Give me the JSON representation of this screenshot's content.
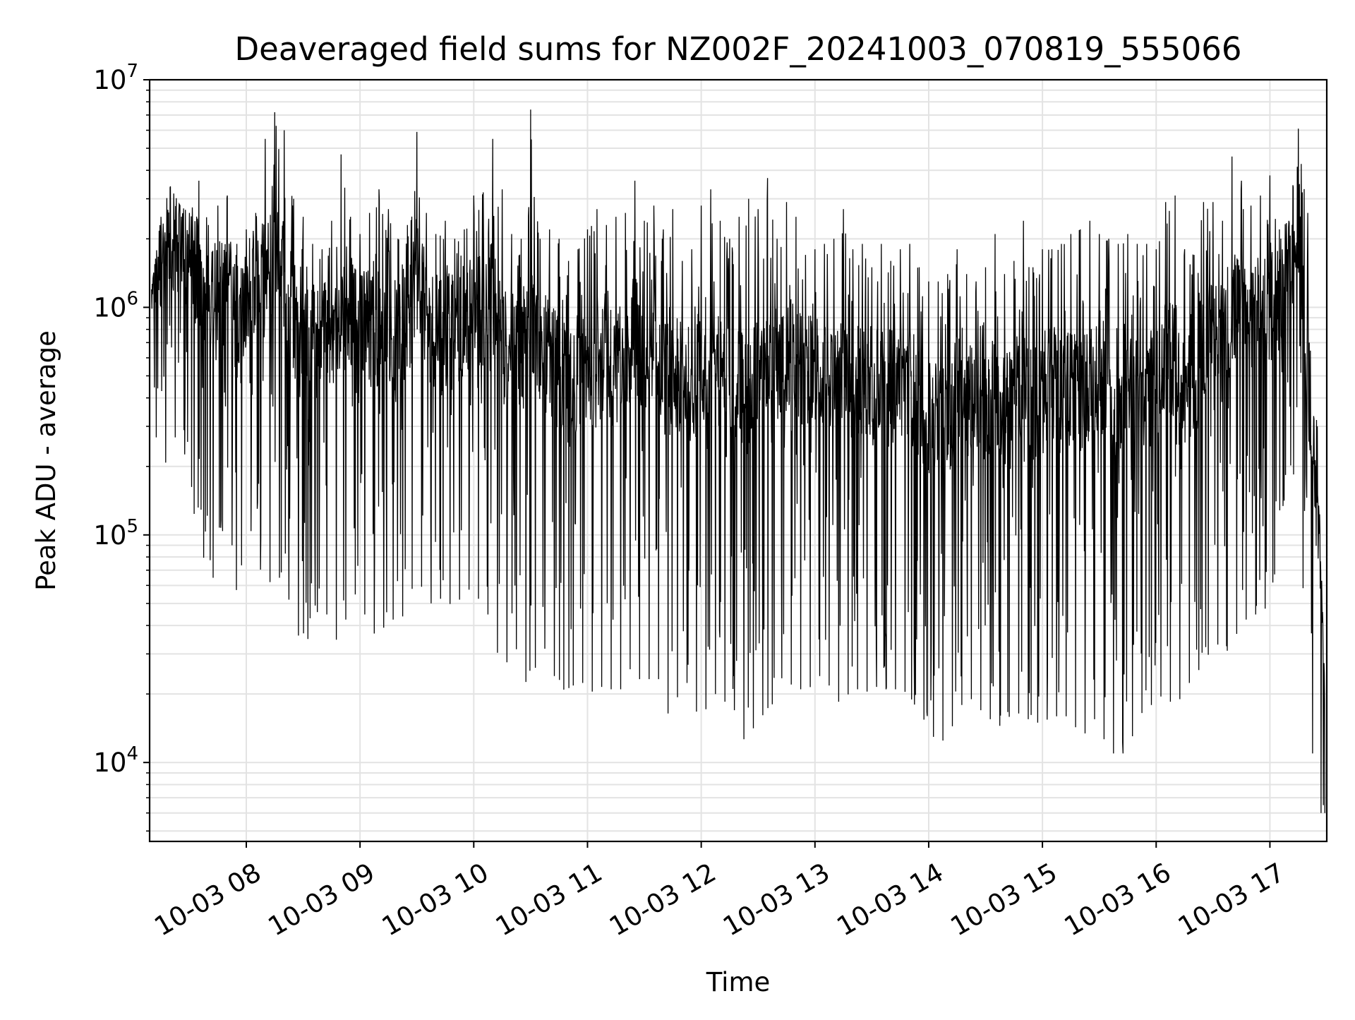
{
  "chart_data": {
    "type": "line",
    "title": "Deaveraged field sums for NZ002F_20241003_070819_555066",
    "xlabel": "Time",
    "ylabel": "Peak ADU - average",
    "y_scale": "log",
    "ylim": [
      4500,
      10000000
    ],
    "xlim": [
      "2024-10-03 07:09",
      "2024-10-03 17:30"
    ],
    "grid": true,
    "legend": "none",
    "line_color": "#000000",
    "x_ticks": [
      {
        "value": "2024-10-03 08:00",
        "label": "10-03 08"
      },
      {
        "value": "2024-10-03 09:00",
        "label": "10-03 09"
      },
      {
        "value": "2024-10-03 10:00",
        "label": "10-03 10"
      },
      {
        "value": "2024-10-03 11:00",
        "label": "10-03 11"
      },
      {
        "value": "2024-10-03 12:00",
        "label": "10-03 12"
      },
      {
        "value": "2024-10-03 13:00",
        "label": "10-03 13"
      },
      {
        "value": "2024-10-03 14:00",
        "label": "10-03 14"
      },
      {
        "value": "2024-10-03 15:00",
        "label": "10-03 15"
      },
      {
        "value": "2024-10-03 16:00",
        "label": "10-03 16"
      },
      {
        "value": "2024-10-03 17:00",
        "label": "10-03 17"
      }
    ],
    "y_ticks": [
      {
        "value": 10000,
        "base": "10",
        "exp": "4"
      },
      {
        "value": 100000,
        "base": "10",
        "exp": "5"
      },
      {
        "value": 1000000,
        "base": "10",
        "exp": "6"
      },
      {
        "value": 10000000,
        "base": "10",
        "exp": "7"
      }
    ],
    "series": [
      {
        "x": [
          "2024-10-03 07:10",
          "2024-10-03 07:15",
          "2024-10-03 07:20",
          "2024-10-03 07:25",
          "2024-10-03 07:30",
          "2024-10-03 07:35",
          "2024-10-03 07:40",
          "2024-10-03 07:45",
          "2024-10-03 07:50",
          "2024-10-03 07:55",
          "2024-10-03 08:00",
          "2024-10-03 08:05",
          "2024-10-03 08:10",
          "2024-10-03 08:15",
          "2024-10-03 08:20",
          "2024-10-03 08:25",
          "2024-10-03 08:30",
          "2024-10-03 08:35",
          "2024-10-03 08:40",
          "2024-10-03 08:45",
          "2024-10-03 08:50",
          "2024-10-03 08:55",
          "2024-10-03 09:00",
          "2024-10-03 09:05",
          "2024-10-03 09:10",
          "2024-10-03 09:15",
          "2024-10-03 09:20",
          "2024-10-03 09:25",
          "2024-10-03 09:30",
          "2024-10-03 09:35",
          "2024-10-03 09:40",
          "2024-10-03 09:45",
          "2024-10-03 09:50",
          "2024-10-03 09:55",
          "2024-10-03 10:00",
          "2024-10-03 10:05",
          "2024-10-03 10:10",
          "2024-10-03 10:15",
          "2024-10-03 10:20",
          "2024-10-03 10:25",
          "2024-10-03 10:30",
          "2024-10-03 10:35",
          "2024-10-03 10:40",
          "2024-10-03 10:45",
          "2024-10-03 10:50",
          "2024-10-03 10:55",
          "2024-10-03 11:00",
          "2024-10-03 11:05",
          "2024-10-03 11:10",
          "2024-10-03 11:15",
          "2024-10-03 11:20",
          "2024-10-03 11:25",
          "2024-10-03 11:30",
          "2024-10-03 11:35",
          "2024-10-03 11:40",
          "2024-10-03 11:45",
          "2024-10-03 11:50",
          "2024-10-03 11:55",
          "2024-10-03 12:00",
          "2024-10-03 12:05",
          "2024-10-03 12:10",
          "2024-10-03 12:15",
          "2024-10-03 12:20",
          "2024-10-03 12:25",
          "2024-10-03 12:30",
          "2024-10-03 12:35",
          "2024-10-03 12:40",
          "2024-10-03 12:45",
          "2024-10-03 12:50",
          "2024-10-03 12:55",
          "2024-10-03 13:00",
          "2024-10-03 13:05",
          "2024-10-03 13:10",
          "2024-10-03 13:15",
          "2024-10-03 13:20",
          "2024-10-03 13:25",
          "2024-10-03 13:30",
          "2024-10-03 13:35",
          "2024-10-03 13:40",
          "2024-10-03 13:45",
          "2024-10-03 13:50",
          "2024-10-03 13:55",
          "2024-10-03 14:00",
          "2024-10-03 14:05",
          "2024-10-03 14:10",
          "2024-10-03 14:15",
          "2024-10-03 14:20",
          "2024-10-03 14:25",
          "2024-10-03 14:30",
          "2024-10-03 14:35",
          "2024-10-03 14:40",
          "2024-10-03 14:45",
          "2024-10-03 14:50",
          "2024-10-03 14:55",
          "2024-10-03 15:00",
          "2024-10-03 15:05",
          "2024-10-03 15:10",
          "2024-10-03 15:15",
          "2024-10-03 15:20",
          "2024-10-03 15:25",
          "2024-10-03 15:30",
          "2024-10-03 15:35",
          "2024-10-03 15:40",
          "2024-10-03 15:45",
          "2024-10-03 15:50",
          "2024-10-03 15:55",
          "2024-10-03 16:00",
          "2024-10-03 16:05",
          "2024-10-03 16:10",
          "2024-10-03 16:15",
          "2024-10-03 16:20",
          "2024-10-03 16:25",
          "2024-10-03 16:30",
          "2024-10-03 16:35",
          "2024-10-03 16:40",
          "2024-10-03 16:45",
          "2024-10-03 16:50",
          "2024-10-03 16:55",
          "2024-10-03 17:00",
          "2024-10-03 17:05",
          "2024-10-03 17:10",
          "2024-10-03 17:15",
          "2024-10-03 17:20",
          "2024-10-03 17:25",
          "2024-10-03 17:29"
        ],
        "high": [
          1200000,
          2500000,
          3400000,
          2800000,
          2600000,
          3600000,
          2300000,
          2800000,
          3100000,
          1900000,
          2200000,
          2600000,
          5500000,
          7200000,
          6000000,
          3000000,
          2500000,
          1900000,
          1800000,
          2400000,
          4700000,
          2500000,
          2100000,
          2600000,
          3300000,
          2700000,
          2000000,
          2300000,
          5900000,
          2600000,
          2100000,
          2400000,
          2000000,
          2200000,
          3100000,
          3200000,
          5500000,
          3300000,
          2100000,
          2000000,
          7400000,
          2000000,
          2200000,
          2000000,
          1600000,
          1800000,
          2200000,
          2700000,
          2300000,
          2500000,
          2600000,
          3600000,
          2400000,
          2800000,
          2200000,
          2700000,
          1600000,
          1800000,
          2800000,
          3300000,
          2400000,
          2000000,
          2500000,
          3000000,
          2700000,
          3700000,
          2000000,
          2900000,
          2500000,
          1700000,
          1800000,
          1900000,
          2000000,
          2700000,
          1800000,
          1900000,
          1500000,
          1900000,
          1600000,
          1800000,
          1900000,
          1500000,
          1300000,
          1300000,
          1400000,
          1800000,
          1400000,
          1300000,
          1500000,
          2100000,
          1400000,
          1600000,
          2400000,
          1500000,
          1800000,
          1800000,
          1900000,
          2100000,
          2200000,
          2400000,
          2100000,
          2000000,
          1900000,
          2100000,
          1900000,
          1900000,
          1800000,
          2900000,
          3100000,
          1800000,
          1700000,
          2900000,
          2900000,
          2400000,
          4600000,
          3600000,
          2800000,
          3100000,
          3800000,
          2200000,
          2400000,
          6100000,
          2600000,
          300000,
          20000
        ],
        "low": [
          400000,
          180000,
          240000,
          300000,
          170000,
          90000,
          70000,
          60000,
          180000,
          45000,
          120000,
          90000,
          55000,
          70000,
          60000,
          45000,
          29000,
          42000,
          50000,
          40000,
          30000,
          60000,
          50000,
          40000,
          34000,
          45000,
          40000,
          48000,
          70000,
          50000,
          50000,
          55000,
          45000,
          60000,
          55000,
          50000,
          40000,
          23000,
          33000,
          30000,
          17000,
          40000,
          25000,
          23000,
          19000,
          25000,
          20000,
          21000,
          22000,
          20000,
          22000,
          30000,
          18000,
          30000,
          18000,
          15000,
          25000,
          20000,
          14000,
          21000,
          19000,
          18000,
          16000,
          10000,
          20000,
          13000,
          25000,
          22000,
          22000,
          20000,
          23000,
          25000,
          19000,
          18000,
          22000,
          20000,
          21000,
          22000,
          20000,
          22000,
          19000,
          17000,
          14000,
          12000,
          13000,
          16000,
          20000,
          18000,
          16000,
          15000,
          14000,
          18000,
          15000,
          16000,
          14000,
          17000,
          15000,
          17000,
          12000,
          15000,
          16000,
          10000,
          12000,
          10000,
          17000,
          16000,
          20000,
          19000,
          18000,
          20000,
          25000,
          26000,
          34000,
          32000,
          30000,
          45000,
          40000,
          50000,
          45000,
          100000,
          200000,
          170000,
          20000,
          6000,
          6000
        ]
      }
    ]
  }
}
